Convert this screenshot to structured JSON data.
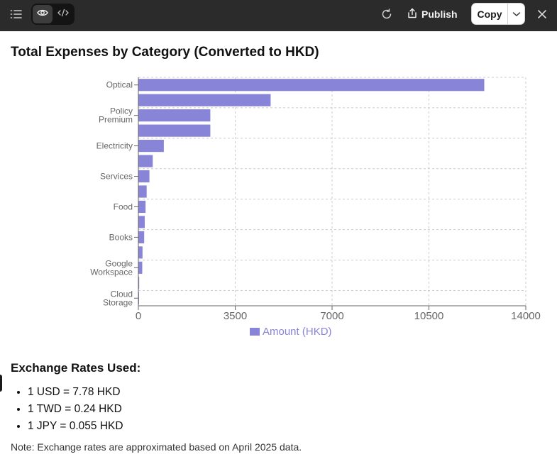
{
  "toolbar": {
    "publish_label": "Publish",
    "copy_label": "Copy",
    "icons": [
      "list-icon",
      "eye-icon",
      "code-icon",
      "refresh-icon",
      "share-icon",
      "chevron-down-icon",
      "close-icon"
    ]
  },
  "page": {
    "title": "Total Expenses by Category (Converted to HKD)",
    "rates_title": "Exchange Rates Used:",
    "rates": [
      "1 USD = 7.78 HKD",
      "1 TWD = 0.24 HKD",
      "1 JPY = 0.055 HKD"
    ],
    "note": "Note: Exchange rates are approximated based on April 2025 data."
  },
  "chart_data": {
    "type": "bar",
    "orientation": "horizontal",
    "title": "",
    "xlabel": "",
    "ylabel": "",
    "xlim": [
      0,
      14000
    ],
    "x_ticks": [
      "0",
      "3500",
      "7000",
      "10500",
      "14000"
    ],
    "grid": true,
    "legend_position": "bottom",
    "bar_color": "#8884d8",
    "categories": [
      "Optical",
      "",
      "Policy Premium",
      "",
      "Electricity",
      "",
      "Services",
      "",
      "Food",
      "",
      "Books",
      "",
      "Google Workspace",
      "",
      "Cloud Storage"
    ],
    "series": [
      {
        "name": "Amount (HKD)",
        "values": [
          12500,
          4780,
          2600,
          2600,
          920,
          520,
          400,
          300,
          260,
          230,
          210,
          150,
          140,
          30,
          20
        ]
      }
    ]
  }
}
